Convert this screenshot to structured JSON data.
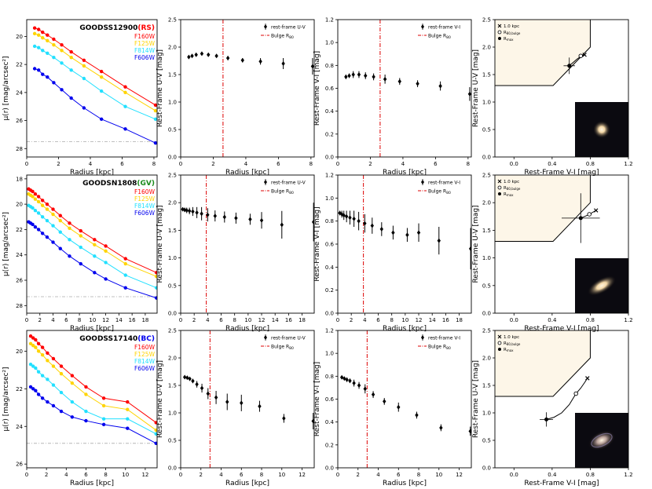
{
  "colors": {
    "F160W": "#ff0000",
    "F125W": "#ffd400",
    "F814W": "#22e0ff",
    "F606W": "#0000ee",
    "bulge": "#dd0000",
    "ref_line": "#aaaaaa",
    "quiescent_box": "#fdf6e8",
    "marker": "#000000",
    "tag_RS": "#ff0000",
    "tag_GV": "#1a8a1a",
    "tag_BC": "#0000ee"
  },
  "labels": {
    "radius_xlabel": "Radius [kpc]",
    "sb_ylabel": "μ(r) [mag/arcsec²]",
    "uv_ylabel": "Rest-Frame U-V [mag]",
    "vi_ylabel": "Rest-Frame V-I [mag]",
    "uvj_xlabel": "Rest-Frame V-I [mag]",
    "uvj_ylabel": "Rest-Frame U-V [mag]",
    "filters": [
      "F160W",
      "F125W",
      "F814W",
      "F606W"
    ],
    "legend_uv": "rest-frame U-V",
    "legend_vi": "rest-frame V-I",
    "legend_bulge": "Bulge R",
    "legend_bulge_sub": "80",
    "uvj_legend_1kpc": "1.0 kpc",
    "uvj_legend_r80": "R",
    "uvj_legend_r80_sub": "80,bulge",
    "uvj_legend_rmax": "R",
    "uvj_legend_rmax_sub": "max"
  },
  "chart_data": [
    {
      "type": "line",
      "kind": "surface_brightness",
      "galaxy": "GOODSS12900",
      "tag": "RS",
      "xlim": [
        0,
        8.2
      ],
      "ylim": [
        28.6,
        18.8
      ],
      "xticks": [
        0,
        2,
        4,
        6,
        8
      ],
      "yticks": [
        20,
        22,
        24,
        26,
        28
      ],
      "ref_level": 27.5,
      "x": [
        0.5,
        0.75,
        1.0,
        1.3,
        1.7,
        2.2,
        2.8,
        3.6,
        4.7,
        6.2,
        8.1
      ],
      "series": [
        {
          "name": "F160W",
          "values": [
            19.4,
            19.5,
            19.7,
            19.9,
            20.2,
            20.6,
            21.1,
            21.7,
            22.5,
            23.6,
            24.9
          ]
        },
        {
          "name": "F125W",
          "values": [
            19.8,
            19.9,
            20.1,
            20.3,
            20.6,
            21.0,
            21.5,
            22.1,
            22.9,
            24.0,
            25.3
          ]
        },
        {
          "name": "F814W",
          "values": [
            20.7,
            20.8,
            21.0,
            21.2,
            21.5,
            21.9,
            22.4,
            23.0,
            23.9,
            25.0,
            25.9
          ]
        },
        {
          "name": "F606W",
          "values": [
            22.3,
            22.4,
            22.7,
            22.9,
            23.3,
            23.8,
            24.4,
            25.1,
            25.9,
            26.6,
            27.6
          ]
        }
      ]
    },
    {
      "type": "scatter",
      "kind": "color_profile",
      "quantity": "U-V",
      "galaxy": "GOODSS12900",
      "xlim": [
        0,
        8.2
      ],
      "ylim": [
        0,
        2.5
      ],
      "xticks": [
        0,
        2,
        4,
        6,
        8
      ],
      "yticks": [
        0.0,
        0.5,
        1.0,
        1.5,
        2.0,
        2.5
      ],
      "bulge_r80": 2.6,
      "x": [
        0.5,
        0.7,
        0.95,
        1.3,
        1.7,
        2.2,
        2.9,
        3.8,
        4.9,
        6.3,
        8.1
      ],
      "y": [
        1.82,
        1.84,
        1.86,
        1.88,
        1.86,
        1.84,
        1.8,
        1.76,
        1.74,
        1.7,
        1.65
      ],
      "err": [
        0.03,
        0.03,
        0.03,
        0.03,
        0.03,
        0.03,
        0.04,
        0.04,
        0.06,
        0.1,
        0.15
      ]
    },
    {
      "type": "scatter",
      "kind": "color_profile",
      "quantity": "V-I",
      "galaxy": "GOODSS12900",
      "xlim": [
        0,
        8.2
      ],
      "ylim": [
        0,
        1.2
      ],
      "xticks": [
        0,
        2,
        4,
        6,
        8
      ],
      "yticks": [
        0.0,
        0.2,
        0.4,
        0.6,
        0.8,
        1.0,
        1.2
      ],
      "bulge_r80": 2.6,
      "x": [
        0.5,
        0.7,
        0.95,
        1.3,
        1.7,
        2.2,
        2.9,
        3.8,
        4.9,
        6.3,
        8.1
      ],
      "y": [
        0.7,
        0.71,
        0.72,
        0.72,
        0.71,
        0.7,
        0.68,
        0.66,
        0.64,
        0.62,
        0.55
      ],
      "err": [
        0.02,
        0.02,
        0.03,
        0.03,
        0.03,
        0.03,
        0.04,
        0.03,
        0.03,
        0.04,
        0.06
      ]
    },
    {
      "type": "scatter",
      "kind": "uvj",
      "galaxy": "GOODSS12900",
      "xlim": [
        -0.2,
        1.2
      ],
      "ylim": [
        0,
        2.5
      ],
      "xticks": [
        0.0,
        0.4,
        0.8,
        1.2
      ],
      "yticks": [
        0.0,
        0.5,
        1.0,
        1.5,
        2.0,
        2.5
      ],
      "track_x": [
        0.58,
        0.62,
        0.66,
        0.7,
        0.74
      ],
      "track_y": [
        1.66,
        1.72,
        1.78,
        1.83,
        1.86
      ],
      "one_kpc": [
        0.74,
        1.86
      ],
      "r80_bulge": [
        0.7,
        1.84
      ],
      "r_max": [
        0.58,
        1.66
      ],
      "r_max_err": [
        0.06,
        0.15
      ]
    },
    {
      "type": "line",
      "kind": "surface_brightness",
      "galaxy": "GOODSN1808",
      "tag": "GV",
      "xlim": [
        0,
        19.8
      ],
      "ylim": [
        28.6,
        17.7
      ],
      "xticks": [
        0,
        2,
        4,
        6,
        8,
        10,
        12,
        14,
        16,
        18
      ],
      "yticks": [
        18,
        20,
        22,
        24,
        26,
        28
      ],
      "ref_level": 27.3,
      "x": [
        0.3,
        0.6,
        0.9,
        1.3,
        1.8,
        2.4,
        3.1,
        4.0,
        5.1,
        6.5,
        8.2,
        10.3,
        12.0,
        15.0,
        19.7
      ],
      "series": [
        {
          "name": "F160W",
          "values": [
            18.8,
            18.9,
            19.0,
            19.2,
            19.4,
            19.7,
            20.0,
            20.4,
            20.9,
            21.5,
            22.1,
            22.8,
            23.3,
            24.3,
            25.4
          ]
        },
        {
          "name": "F125W",
          "values": [
            19.2,
            19.3,
            19.4,
            19.6,
            19.8,
            20.1,
            20.4,
            20.8,
            21.3,
            21.9,
            22.5,
            23.2,
            23.7,
            24.7,
            25.7
          ]
        },
        {
          "name": "F814W",
          "values": [
            20.1,
            20.2,
            20.3,
            20.5,
            20.7,
            21.0,
            21.3,
            21.7,
            22.2,
            22.8,
            23.4,
            24.1,
            24.6,
            25.6,
            26.6
          ]
        },
        {
          "name": "F606W",
          "values": [
            21.4,
            21.5,
            21.6,
            21.8,
            22.0,
            22.3,
            22.6,
            23.0,
            23.5,
            24.1,
            24.7,
            25.4,
            25.9,
            26.6,
            27.4
          ]
        }
      ]
    },
    {
      "type": "scatter",
      "kind": "color_profile",
      "quantity": "U-V",
      "galaxy": "GOODSN1808",
      "xlim": [
        0,
        19.8
      ],
      "ylim": [
        0,
        2.5
      ],
      "xticks": [
        0,
        2,
        4,
        6,
        8,
        10,
        12,
        14,
        16,
        18
      ],
      "yticks": [
        0.0,
        0.5,
        1.0,
        1.5,
        2.0,
        2.5
      ],
      "bulge_r80": 3.8,
      "x": [
        0.3,
        0.6,
        0.9,
        1.3,
        1.8,
        2.4,
        3.1,
        4.0,
        5.1,
        6.5,
        8.2,
        10.3,
        12.0,
        15.0,
        19.7
      ],
      "y": [
        1.88,
        1.87,
        1.86,
        1.85,
        1.84,
        1.82,
        1.8,
        1.78,
        1.76,
        1.74,
        1.72,
        1.7,
        1.68,
        1.6,
        1.65
      ],
      "err": [
        0.03,
        0.04,
        0.05,
        0.06,
        0.08,
        0.1,
        0.12,
        0.12,
        0.1,
        0.1,
        0.1,
        0.1,
        0.15,
        0.25,
        0.35
      ]
    },
    {
      "type": "scatter",
      "kind": "color_profile",
      "quantity": "V-I",
      "galaxy": "GOODSN1808",
      "xlim": [
        0,
        19.8
      ],
      "ylim": [
        0,
        1.2
      ],
      "xticks": [
        0,
        2,
        4,
        6,
        8,
        10,
        12,
        14,
        16,
        18
      ],
      "yticks": [
        0.0,
        0.2,
        0.4,
        0.6,
        0.8,
        1.0,
        1.2
      ],
      "bulge_r80": 3.8,
      "x": [
        0.3,
        0.6,
        0.9,
        1.3,
        1.8,
        2.4,
        3.1,
        4.0,
        5.1,
        6.5,
        8.2,
        10.3,
        12.0,
        15.0,
        19.7
      ],
      "y": [
        0.87,
        0.86,
        0.85,
        0.84,
        0.83,
        0.82,
        0.8,
        0.78,
        0.76,
        0.73,
        0.7,
        0.68,
        0.7,
        0.63,
        0.56
      ],
      "err": [
        0.02,
        0.03,
        0.04,
        0.05,
        0.06,
        0.07,
        0.08,
        0.08,
        0.07,
        0.06,
        0.06,
        0.06,
        0.08,
        0.12,
        0.18
      ]
    },
    {
      "type": "scatter",
      "kind": "uvj",
      "galaxy": "GOODSN1808",
      "xlim": [
        -0.2,
        1.2
      ],
      "ylim": [
        0,
        2.5
      ],
      "xticks": [
        0.0,
        0.4,
        0.8,
        1.2
      ],
      "yticks": [
        0.0,
        0.5,
        1.0,
        1.5,
        2.0,
        2.5
      ],
      "track_x": [
        0.7,
        0.74,
        0.78,
        0.82,
        0.86
      ],
      "track_y": [
        1.72,
        1.75,
        1.78,
        1.82,
        1.86
      ],
      "one_kpc": [
        0.86,
        1.86
      ],
      "r80_bulge": [
        0.79,
        1.79
      ],
      "r_max": [
        0.7,
        1.72
      ],
      "r_max_err": [
        0.2,
        0.45
      ]
    },
    {
      "type": "line",
      "kind": "surface_brightness",
      "galaxy": "GOODSS17140",
      "tag": "BC",
      "xlim": [
        0,
        13.2
      ],
      "ylim": [
        26.2,
        18.9
      ],
      "xticks": [
        0,
        2,
        4,
        6,
        8,
        10,
        12
      ],
      "yticks": [
        20,
        22,
        24,
        26
      ],
      "ref_level": 24.9,
      "x": [
        0.4,
        0.65,
        0.9,
        1.2,
        1.6,
        2.1,
        2.7,
        3.5,
        4.6,
        6.0,
        7.8,
        10.2,
        13.1
      ],
      "series": [
        {
          "name": "F160W",
          "values": [
            19.2,
            19.3,
            19.4,
            19.6,
            19.8,
            20.1,
            20.4,
            20.8,
            21.3,
            21.9,
            22.5,
            22.7,
            23.8
          ]
        },
        {
          "name": "F125W",
          "values": [
            19.6,
            19.7,
            19.8,
            20.0,
            20.2,
            20.5,
            20.8,
            21.2,
            21.7,
            22.3,
            22.9,
            23.1,
            24.2
          ]
        },
        {
          "name": "F814W",
          "values": [
            20.7,
            20.8,
            20.9,
            21.1,
            21.3,
            21.5,
            21.8,
            22.2,
            22.7,
            23.2,
            23.6,
            23.6,
            24.4
          ]
        },
        {
          "name": "F606W",
          "values": [
            21.9,
            22.0,
            22.1,
            22.3,
            22.5,
            22.7,
            22.9,
            23.2,
            23.5,
            23.7,
            23.9,
            24.1,
            24.9
          ]
        }
      ]
    },
    {
      "type": "scatter",
      "kind": "color_profile",
      "quantity": "U-V",
      "galaxy": "GOODSS17140",
      "xlim": [
        0,
        13.2
      ],
      "ylim": [
        0,
        2.5
      ],
      "xticks": [
        0,
        2,
        4,
        6,
        8,
        10,
        12
      ],
      "yticks": [
        0.0,
        0.5,
        1.0,
        1.5,
        2.0,
        2.5
      ],
      "bulge_r80": 2.9,
      "x": [
        0.4,
        0.65,
        0.9,
        1.2,
        1.6,
        2.1,
        2.7,
        3.5,
        4.6,
        6.0,
        7.8,
        10.2,
        13.1
      ],
      "y": [
        1.65,
        1.64,
        1.62,
        1.58,
        1.52,
        1.45,
        1.35,
        1.28,
        1.2,
        1.18,
        1.12,
        0.9,
        0.85
      ],
      "err": [
        0.02,
        0.02,
        0.03,
        0.04,
        0.06,
        0.08,
        0.1,
        0.12,
        0.15,
        0.15,
        0.1,
        0.08,
        0.15
      ]
    },
    {
      "type": "scatter",
      "kind": "color_profile",
      "quantity": "V-I",
      "galaxy": "GOODSS17140",
      "xlim": [
        0,
        13.2
      ],
      "ylim": [
        0,
        1.2
      ],
      "xticks": [
        0,
        2,
        4,
        6,
        8,
        10,
        12
      ],
      "yticks": [
        0.0,
        0.2,
        0.4,
        0.6,
        0.8,
        1.0,
        1.2
      ],
      "bulge_r80": 2.9,
      "x": [
        0.4,
        0.65,
        0.9,
        1.2,
        1.6,
        2.1,
        2.7,
        3.5,
        4.6,
        6.0,
        7.8,
        10.2,
        13.1
      ],
      "y": [
        0.79,
        0.78,
        0.77,
        0.76,
        0.74,
        0.72,
        0.69,
        0.64,
        0.58,
        0.53,
        0.46,
        0.35,
        0.32
      ],
      "err": [
        0.01,
        0.01,
        0.02,
        0.02,
        0.03,
        0.03,
        0.04,
        0.03,
        0.03,
        0.04,
        0.03,
        0.03,
        0.04
      ]
    },
    {
      "type": "scatter",
      "kind": "uvj",
      "galaxy": "GOODSS17140",
      "xlim": [
        -0.2,
        1.2
      ],
      "ylim": [
        0,
        2.5
      ],
      "xticks": [
        0.0,
        0.4,
        0.8,
        1.2
      ],
      "yticks": [
        0.0,
        0.5,
        1.0,
        1.5,
        2.0,
        2.5
      ],
      "track_x": [
        0.34,
        0.42,
        0.5,
        0.58,
        0.65,
        0.7,
        0.74,
        0.77
      ],
      "track_y": [
        0.88,
        0.92,
        1.0,
        1.15,
        1.35,
        1.45,
        1.55,
        1.63
      ],
      "one_kpc": [
        0.77,
        1.63
      ],
      "r80_bulge": [
        0.65,
        1.35
      ],
      "r_max": [
        0.34,
        0.88
      ],
      "r_max_err": [
        0.07,
        0.13
      ]
    }
  ]
}
